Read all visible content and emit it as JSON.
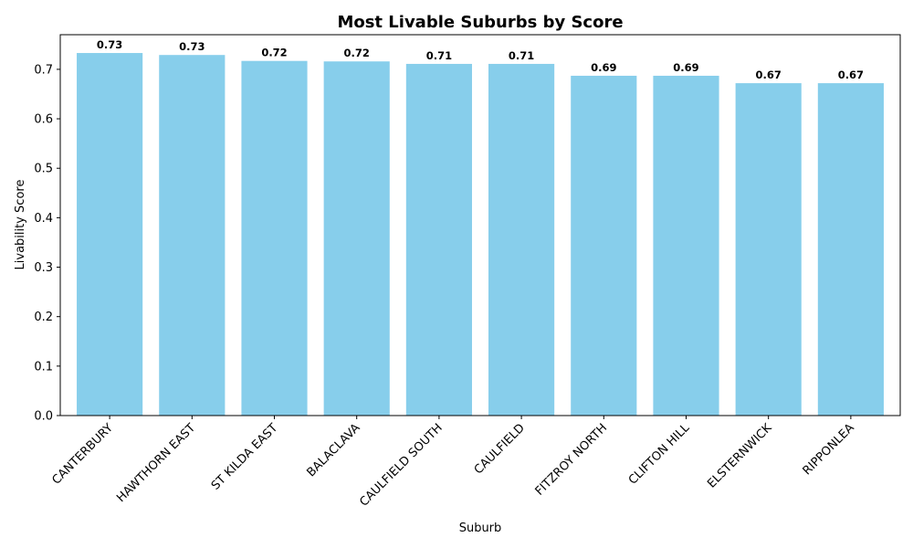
{
  "chart_data": {
    "type": "bar",
    "title": "Most Livable Suburbs by Score",
    "xlabel": "Suburb",
    "ylabel": "Livability Score",
    "categories": [
      "CANTERBURY",
      "HAWTHORN EAST",
      "ST KILDA EAST",
      "BALACLAVA",
      "CAULFIELD SOUTH",
      "CAULFIELD",
      "FITZROY NORTH",
      "CLIFTON HILL",
      "ELSTERNWICK",
      "RIPPONLEA"
    ],
    "values": [
      0.733,
      0.729,
      0.717,
      0.716,
      0.711,
      0.711,
      0.687,
      0.687,
      0.672,
      0.672
    ],
    "data_labels": [
      "0.73",
      "0.73",
      "0.72",
      "0.72",
      "0.71",
      "0.71",
      "0.69",
      "0.69",
      "0.67",
      "0.67"
    ],
    "ylim": [
      0,
      0.77
    ],
    "yticks": [
      0.0,
      0.1,
      0.2,
      0.3,
      0.4,
      0.5,
      0.6,
      0.7
    ],
    "ytick_labels": [
      "0.0",
      "0.1",
      "0.2",
      "0.3",
      "0.4",
      "0.5",
      "0.6",
      "0.7"
    ],
    "bar_color": "#87CEEB",
    "grid": false,
    "legend": false
  }
}
